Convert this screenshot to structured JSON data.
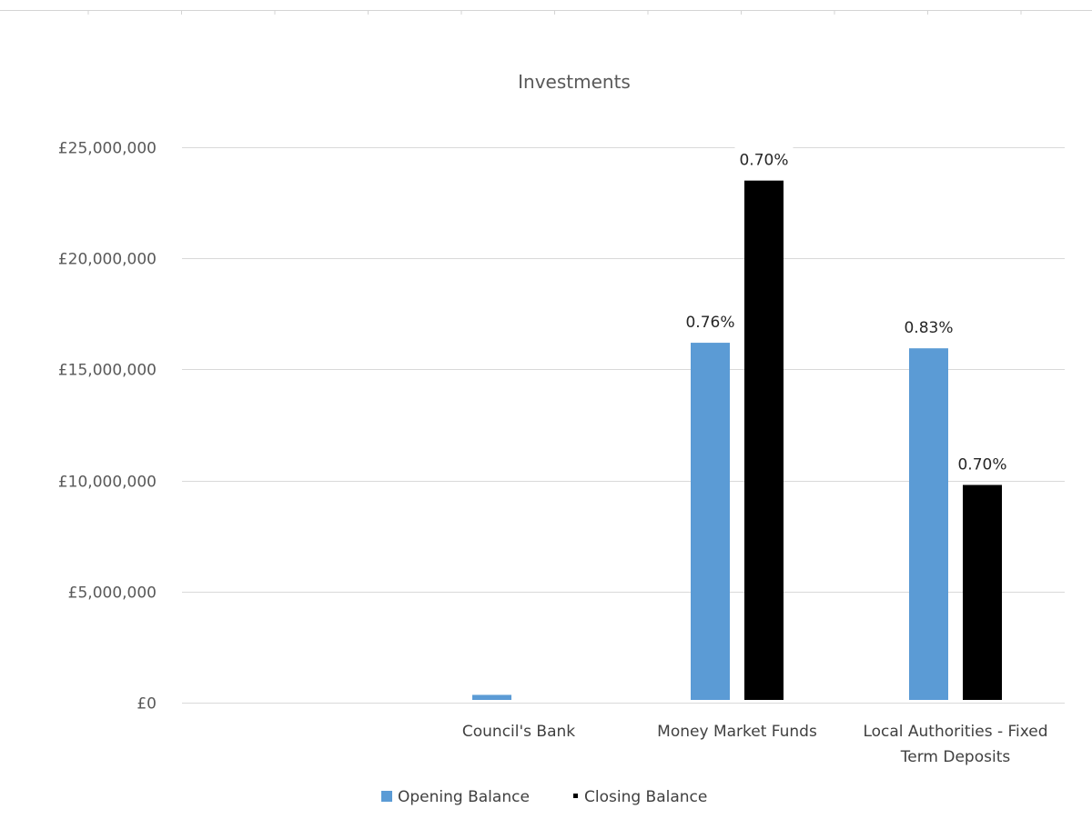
{
  "chart_data": {
    "type": "bar",
    "title": "Investments",
    "xlabel": "",
    "ylabel": "",
    "categories": [
      "",
      "Council's Bank",
      "Money Market Funds",
      "Local Authorities - Fixed Term Deposits"
    ],
    "category_lines": [
      [],
      [
        "Council's Bank"
      ],
      [
        "Money Market Funds"
      ],
      [
        "Local Authorities - Fixed",
        "Term Deposits"
      ]
    ],
    "series": [
      {
        "name": "Opening Balance",
        "color": "#5B9BD5",
        "values": [
          0,
          350000,
          16200000,
          15950000
        ],
        "labels": [
          "",
          "",
          "0.76%",
          "0.83%"
        ]
      },
      {
        "name": "Closing Balance",
        "color": "#000000",
        "values": [
          0,
          0,
          23500000,
          9800000
        ],
        "labels": [
          "",
          "",
          "0.70%",
          "0.70%"
        ]
      }
    ],
    "ylim": [
      0,
      25000000
    ],
    "yticks": [
      0,
      5000000,
      10000000,
      15000000,
      20000000,
      25000000
    ],
    "ytick_labels": [
      "£0",
      "£5,000,000",
      "£10,000,000",
      "£15,000,000",
      "£20,000,000",
      "£25,000,000"
    ],
    "grid": true,
    "legend_position": "bottom",
    "gridline_color": "#D9D9D9"
  }
}
